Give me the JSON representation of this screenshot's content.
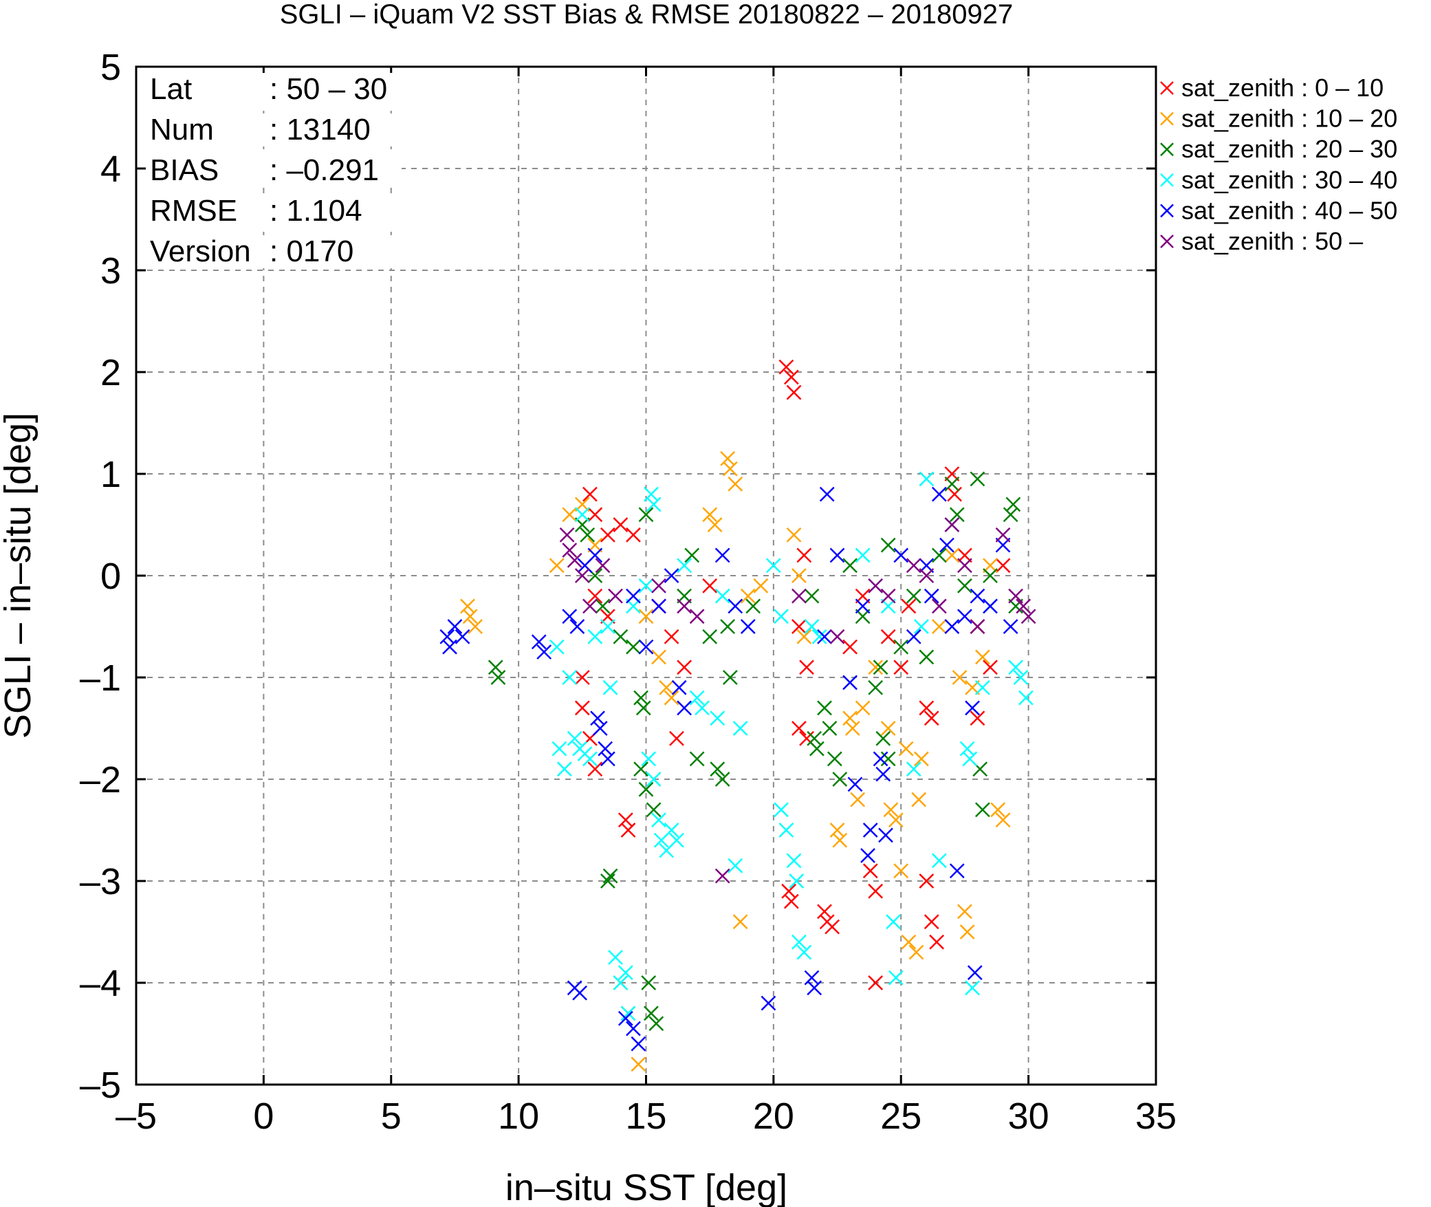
{
  "chart_data": {
    "type": "scatter",
    "title": "SGLI – iQuam V2 SST Bias & RMSE 20180822 – 20180927",
    "xlabel": "in–situ SST [deg]",
    "ylabel": "SGLI – in–situ [deg]",
    "xlim": [
      -5,
      35
    ],
    "ylim": [
      -5,
      5
    ],
    "xticks": [
      -5,
      0,
      5,
      10,
      15,
      20,
      25,
      30,
      35
    ],
    "xtick_labels": [
      "–5",
      "0",
      "5",
      "10",
      "15",
      "20",
      "25",
      "30",
      "35"
    ],
    "yticks": [
      -5,
      -4,
      -3,
      -2,
      -1,
      0,
      1,
      2,
      3,
      4,
      5
    ],
    "ytick_labels": [
      "–5",
      "–4",
      "–3",
      "–2",
      "–1",
      "0",
      "1",
      "2",
      "3",
      "4",
      "5"
    ],
    "grid": true,
    "legend_position": "outside-right-top",
    "stats": [
      {
        "label": "Lat",
        "value": ": 50 – 30"
      },
      {
        "label": "Num",
        "value": ": 13140"
      },
      {
        "label": "BIAS",
        "value": ": –0.291"
      },
      {
        "label": "RMSE",
        "value": ": 1.104"
      },
      {
        "label": "Version",
        "value": ": 0170"
      }
    ],
    "series": [
      {
        "name": "sat_zenith :  0 – 10",
        "color": "#ff0000",
        "points": [
          [
            12.8,
            0.8
          ],
          [
            13.0,
            0.6
          ],
          [
            13.5,
            0.4
          ],
          [
            14.0,
            0.5
          ],
          [
            14.5,
            0.4
          ],
          [
            13.0,
            -0.2
          ],
          [
            13.5,
            -0.4
          ],
          [
            12.5,
            -1.0
          ],
          [
            12.5,
            -1.3
          ],
          [
            12.8,
            -1.6
          ],
          [
            13.0,
            -1.9
          ],
          [
            14.2,
            -2.4
          ],
          [
            14.3,
            -2.5
          ],
          [
            15.5,
            -0.3
          ],
          [
            16.0,
            -0.6
          ],
          [
            16.5,
            -0.9
          ],
          [
            16.2,
            -1.6
          ],
          [
            17.5,
            -0.1
          ],
          [
            20.5,
            2.05
          ],
          [
            20.7,
            1.95
          ],
          [
            20.8,
            1.8
          ],
          [
            20.6,
            -3.1
          ],
          [
            20.7,
            -3.2
          ],
          [
            21.2,
            0.2
          ],
          [
            21.0,
            -0.5
          ],
          [
            21.3,
            -0.9
          ],
          [
            21.0,
            -1.5
          ],
          [
            21.3,
            -1.6
          ],
          [
            22.0,
            -3.3
          ],
          [
            22.1,
            -3.4
          ],
          [
            22.3,
            -3.45
          ],
          [
            23.0,
            -0.7
          ],
          [
            23.5,
            -0.2
          ],
          [
            23.8,
            -2.9
          ],
          [
            24.0,
            -3.1
          ],
          [
            24.0,
            -4.0
          ],
          [
            24.5,
            -0.6
          ],
          [
            25.0,
            -0.9
          ],
          [
            25.3,
            -0.3
          ],
          [
            26.0,
            -1.3
          ],
          [
            26.2,
            -1.4
          ],
          [
            26.0,
            -3.0
          ],
          [
            26.2,
            -3.4
          ],
          [
            26.4,
            -3.6
          ],
          [
            27.0,
            1.0
          ],
          [
            27.1,
            0.8
          ],
          [
            27.5,
            0.2
          ],
          [
            28.0,
            -0.5
          ],
          [
            28.0,
            -1.4
          ],
          [
            28.5,
            -0.9
          ],
          [
            29.0,
            0.1
          ]
        ]
      },
      {
        "name": "sat_zenith : 10 – 20",
        "color": "#ffa500",
        "points": [
          [
            8.0,
            -0.3
          ],
          [
            8.1,
            -0.4
          ],
          [
            8.3,
            -0.5
          ],
          [
            11.5,
            0.1
          ],
          [
            12.0,
            0.6
          ],
          [
            12.5,
            0.7
          ],
          [
            13.0,
            0.3
          ],
          [
            14.0,
            -4.0
          ],
          [
            14.3,
            -4.3
          ],
          [
            14.7,
            -4.8
          ],
          [
            15.0,
            -0.4
          ],
          [
            15.5,
            -0.8
          ],
          [
            15.8,
            -1.1
          ],
          [
            16.0,
            -1.2
          ],
          [
            17.5,
            0.6
          ],
          [
            17.7,
            0.5
          ],
          [
            18.2,
            1.15
          ],
          [
            18.3,
            1.05
          ],
          [
            18.5,
            0.9
          ],
          [
            18.7,
            -3.4
          ],
          [
            19.0,
            -0.2
          ],
          [
            19.5,
            -0.1
          ],
          [
            20.8,
            0.4
          ],
          [
            21.0,
            0.0
          ],
          [
            21.2,
            -0.6
          ],
          [
            22.5,
            -2.5
          ],
          [
            22.6,
            -2.6
          ],
          [
            23.0,
            -1.4
          ],
          [
            23.1,
            -1.5
          ],
          [
            23.3,
            -2.2
          ],
          [
            23.5,
            -1.3
          ],
          [
            24.0,
            -0.9
          ],
          [
            24.5,
            -1.5
          ],
          [
            24.6,
            -2.3
          ],
          [
            24.8,
            -2.4
          ],
          [
            25.0,
            -2.9
          ],
          [
            25.2,
            -1.7
          ],
          [
            25.3,
            -3.6
          ],
          [
            25.6,
            -3.7
          ],
          [
            25.7,
            -2.2
          ],
          [
            25.8,
            -1.8
          ],
          [
            26.5,
            -0.5
          ],
          [
            27.0,
            0.2
          ],
          [
            27.3,
            -1.0
          ],
          [
            27.5,
            -3.3
          ],
          [
            27.6,
            -3.5
          ],
          [
            27.8,
            -1.1
          ],
          [
            28.2,
            -0.8
          ],
          [
            28.5,
            0.1
          ],
          [
            28.8,
            -2.3
          ],
          [
            29.0,
            -2.4
          ]
        ]
      },
      {
        "name": "sat_zenith : 20 – 30",
        "color": "#008000",
        "points": [
          [
            9.1,
            -0.9
          ],
          [
            9.2,
            -1.0
          ],
          [
            12.5,
            0.5
          ],
          [
            12.7,
            0.4
          ],
          [
            13.0,
            0.0
          ],
          [
            13.3,
            -0.3
          ],
          [
            13.5,
            -3.0
          ],
          [
            13.6,
            -2.95
          ],
          [
            14.0,
            -0.6
          ],
          [
            14.5,
            -0.7
          ],
          [
            14.8,
            -1.2
          ],
          [
            14.9,
            -1.3
          ],
          [
            15.0,
            0.6
          ],
          [
            15.1,
            -4.0
          ],
          [
            15.2,
            -4.3
          ],
          [
            15.4,
            -4.4
          ],
          [
            14.8,
            -1.9
          ],
          [
            15.0,
            -2.1
          ],
          [
            15.3,
            -2.3
          ],
          [
            16.5,
            -0.2
          ],
          [
            16.8,
            0.2
          ],
          [
            17.0,
            -1.8
          ],
          [
            17.5,
            -0.6
          ],
          [
            17.8,
            -1.9
          ],
          [
            18.0,
            -2.0
          ],
          [
            18.2,
            -0.5
          ],
          [
            18.3,
            -1.0
          ],
          [
            19.2,
            -0.3
          ],
          [
            21.5,
            -0.2
          ],
          [
            21.6,
            -1.6
          ],
          [
            21.7,
            -1.7
          ],
          [
            22.0,
            -1.3
          ],
          [
            22.2,
            -1.5
          ],
          [
            22.4,
            -1.8
          ],
          [
            22.6,
            -2.0
          ],
          [
            23.0,
            0.1
          ],
          [
            23.5,
            -0.4
          ],
          [
            24.0,
            -1.1
          ],
          [
            24.2,
            -0.9
          ],
          [
            24.3,
            -1.6
          ],
          [
            24.5,
            -1.8
          ],
          [
            24.5,
            0.3
          ],
          [
            25.0,
            -0.7
          ],
          [
            25.5,
            -0.2
          ],
          [
            26.0,
            -0.8
          ],
          [
            26.5,
            0.2
          ],
          [
            27.0,
            0.9
          ],
          [
            27.2,
            0.6
          ],
          [
            27.5,
            -0.1
          ],
          [
            28.0,
            0.95
          ],
          [
            28.1,
            -1.9
          ],
          [
            28.2,
            -2.3
          ],
          [
            28.5,
            0.0
          ],
          [
            29.3,
            0.6
          ],
          [
            29.4,
            0.7
          ],
          [
            29.5,
            -0.3
          ]
        ]
      },
      {
        "name": "sat_zenith : 30 – 40",
        "color": "#00ffff",
        "points": [
          [
            11.5,
            -0.7
          ],
          [
            11.6,
            -1.7
          ],
          [
            11.8,
            -1.9
          ],
          [
            12.0,
            -1.0
          ],
          [
            12.2,
            -1.6
          ],
          [
            12.4,
            -1.7
          ],
          [
            12.6,
            -1.75
          ],
          [
            12.8,
            -1.8
          ],
          [
            12.5,
            0.6
          ],
          [
            13.0,
            -0.6
          ],
          [
            13.5,
            -0.5
          ],
          [
            13.6,
            -1.1
          ],
          [
            13.8,
            -3.75
          ],
          [
            14.0,
            -4.0
          ],
          [
            14.2,
            -3.9
          ],
          [
            14.3,
            -4.3
          ],
          [
            14.5,
            -0.3
          ],
          [
            15.0,
            -0.1
          ],
          [
            15.2,
            0.8
          ],
          [
            15.3,
            0.7
          ],
          [
            15.1,
            -1.8
          ],
          [
            15.3,
            -2.0
          ],
          [
            15.5,
            -2.4
          ],
          [
            15.6,
            -2.6
          ],
          [
            15.8,
            -2.7
          ],
          [
            16.0,
            -2.5
          ],
          [
            16.2,
            -2.6
          ],
          [
            16.5,
            0.1
          ],
          [
            17.0,
            -1.2
          ],
          [
            17.2,
            -1.3
          ],
          [
            17.8,
            -1.4
          ],
          [
            18.0,
            -0.2
          ],
          [
            18.5,
            -2.85
          ],
          [
            18.7,
            -1.5
          ],
          [
            20.0,
            0.1
          ],
          [
            20.3,
            -0.4
          ],
          [
            20.3,
            -2.3
          ],
          [
            20.5,
            -2.5
          ],
          [
            20.8,
            -2.8
          ],
          [
            20.9,
            -3.0
          ],
          [
            21.0,
            -3.6
          ],
          [
            21.2,
            -3.7
          ],
          [
            21.5,
            -0.5
          ],
          [
            21.8,
            -0.6
          ],
          [
            23.5,
            0.2
          ],
          [
            24.0,
            -0.1
          ],
          [
            24.5,
            -0.3
          ],
          [
            24.7,
            -3.4
          ],
          [
            24.8,
            -3.95
          ],
          [
            25.5,
            -1.9
          ],
          [
            25.8,
            -0.5
          ],
          [
            26.0,
            0.95
          ],
          [
            26.5,
            -2.8
          ],
          [
            27.0,
            0.5
          ],
          [
            27.6,
            -1.7
          ],
          [
            27.7,
            -1.8
          ],
          [
            27.8,
            -4.05
          ],
          [
            28.2,
            -1.1
          ],
          [
            28.5,
            -0.3
          ],
          [
            29.5,
            -0.9
          ],
          [
            29.7,
            -1.0
          ],
          [
            29.9,
            -1.2
          ]
        ]
      },
      {
        "name": "sat_zenith : 40 – 50",
        "color": "#0000ff",
        "points": [
          [
            7.2,
            -0.6
          ],
          [
            7.3,
            -0.7
          ],
          [
            7.5,
            -0.5
          ],
          [
            7.8,
            -0.6
          ],
          [
            10.8,
            -0.65
          ],
          [
            11.0,
            -0.75
          ],
          [
            12.0,
            -0.4
          ],
          [
            12.3,
            -0.5
          ],
          [
            12.6,
            0.1
          ],
          [
            13.0,
            0.2
          ],
          [
            13.1,
            -1.4
          ],
          [
            13.2,
            -1.5
          ],
          [
            13.4,
            -1.7
          ],
          [
            13.5,
            -1.8
          ],
          [
            12.2,
            -4.05
          ],
          [
            12.4,
            -4.1
          ],
          [
            14.2,
            -4.35
          ],
          [
            14.5,
            -4.45
          ],
          [
            14.7,
            -4.6
          ],
          [
            14.5,
            -0.2
          ],
          [
            15.0,
            -0.7
          ],
          [
            15.5,
            -0.3
          ],
          [
            16.0,
            0.0
          ],
          [
            16.3,
            -1.1
          ],
          [
            16.5,
            -1.3
          ],
          [
            18.0,
            0.2
          ],
          [
            18.5,
            -0.3
          ],
          [
            19.0,
            -0.5
          ],
          [
            19.8,
            -4.2
          ],
          [
            21.5,
            -3.95
          ],
          [
            21.6,
            -4.05
          ],
          [
            22.0,
            -0.6
          ],
          [
            22.1,
            0.8
          ],
          [
            22.5,
            0.2
          ],
          [
            23.0,
            -1.05
          ],
          [
            23.2,
            -2.05
          ],
          [
            23.5,
            -0.3
          ],
          [
            23.8,
            -2.5
          ],
          [
            23.7,
            -2.75
          ],
          [
            24.2,
            -1.8
          ],
          [
            24.3,
            -1.95
          ],
          [
            24.4,
            -2.55
          ],
          [
            25.0,
            0.2
          ],
          [
            25.5,
            -0.6
          ],
          [
            26.0,
            0.1
          ],
          [
            26.2,
            -0.2
          ],
          [
            26.5,
            0.8
          ],
          [
            26.8,
            0.3
          ],
          [
            27.0,
            -0.5
          ],
          [
            27.2,
            -2.9
          ],
          [
            27.5,
            -0.4
          ],
          [
            27.8,
            -1.3
          ],
          [
            27.9,
            -3.9
          ],
          [
            28.0,
            -0.2
          ],
          [
            28.5,
            -0.3
          ],
          [
            29.0,
            0.3
          ],
          [
            29.3,
            -0.5
          ]
        ]
      },
      {
        "name": "sat_zenith : 50 –",
        "color": "#800080",
        "points": [
          [
            11.9,
            0.4
          ],
          [
            12.0,
            0.25
          ],
          [
            12.2,
            0.15
          ],
          [
            12.5,
            0.0
          ],
          [
            12.8,
            -0.3
          ],
          [
            13.3,
            0.1
          ],
          [
            13.8,
            -0.2
          ],
          [
            15.5,
            -0.1
          ],
          [
            16.5,
            -0.3
          ],
          [
            17.0,
            -0.4
          ],
          [
            18.0,
            -2.95
          ],
          [
            21.0,
            -0.2
          ],
          [
            22.5,
            -0.6
          ],
          [
            24.0,
            -0.1
          ],
          [
            24.5,
            -0.2
          ],
          [
            25.5,
            0.1
          ],
          [
            26.0,
            0.0
          ],
          [
            26.5,
            -0.3
          ],
          [
            27.0,
            0.5
          ],
          [
            27.5,
            0.1
          ],
          [
            28.0,
            -0.5
          ],
          [
            29.0,
            0.4
          ],
          [
            29.5,
            -0.2
          ],
          [
            29.8,
            -0.3
          ],
          [
            30.0,
            -0.4
          ]
        ]
      }
    ]
  }
}
